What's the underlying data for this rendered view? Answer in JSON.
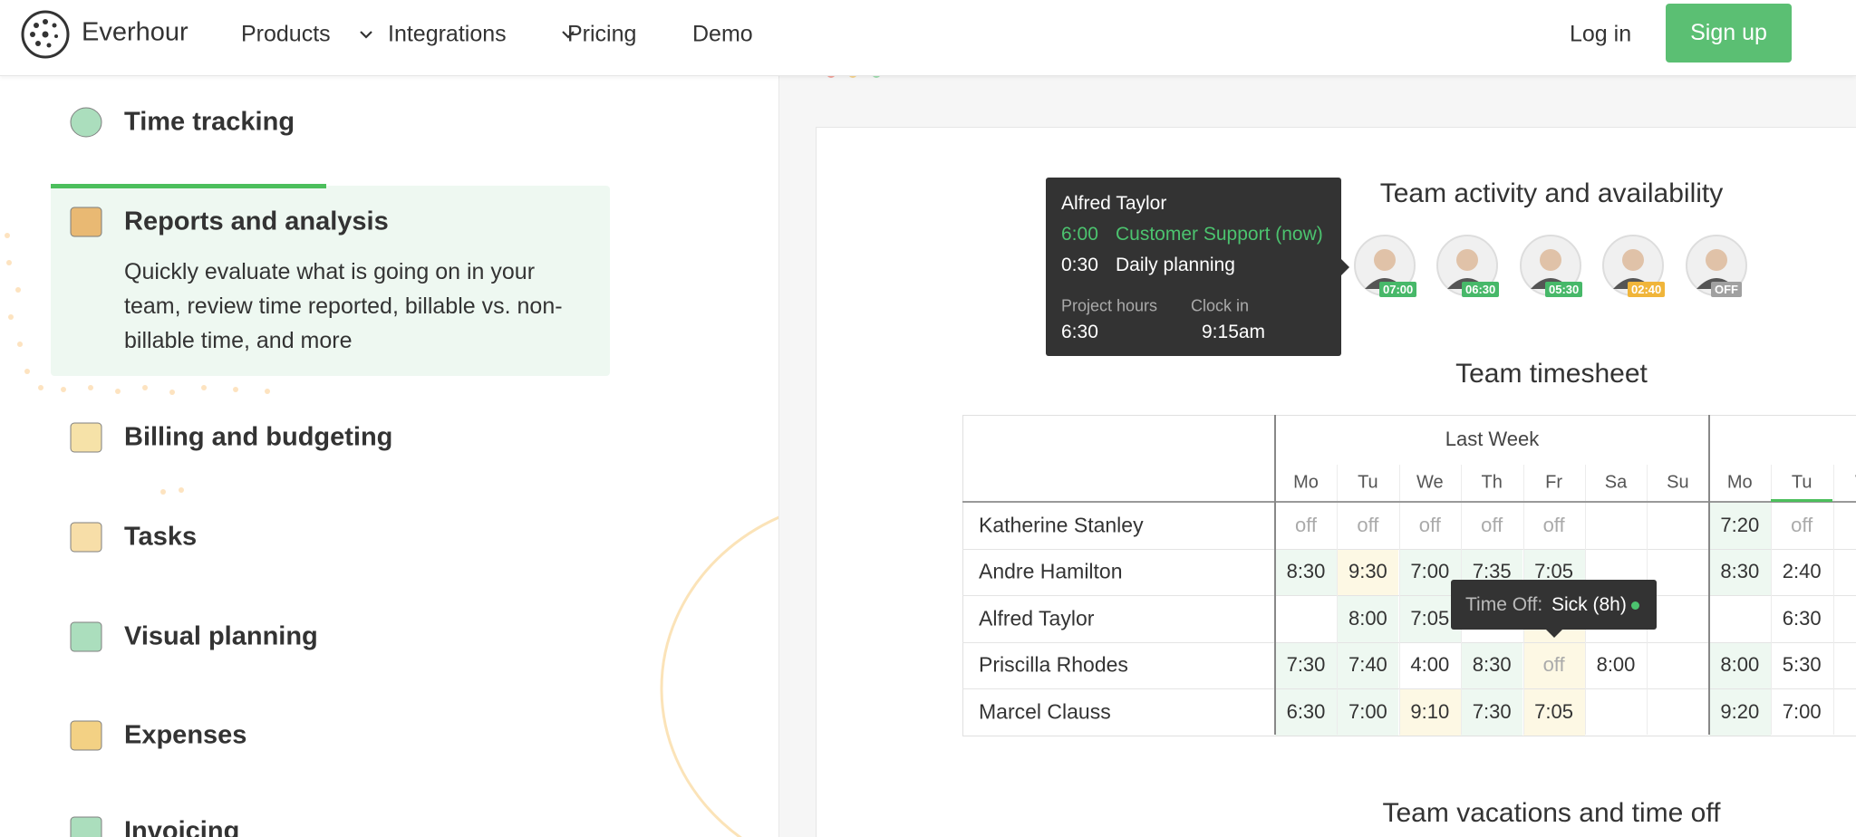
{
  "header": {
    "brand": "Everhour",
    "nav": [
      "Products",
      "Integrations",
      "Pricing",
      "Demo"
    ],
    "login": "Log in",
    "signup": "Sign up"
  },
  "features": [
    {
      "title": "Time tracking",
      "color": "#8fd3a8"
    },
    {
      "title": "Reports and analysis",
      "description": "Quickly evaluate what is going on in your team, review time reported, billable vs. non-billable time, and more",
      "color": "#e8a44a"
    },
    {
      "title": "Billing and budgeting",
      "color": "#f3d98c"
    },
    {
      "title": "Tasks",
      "color": "#f5d48c"
    },
    {
      "title": "Visual planning",
      "color": "#8fd3a8"
    },
    {
      "title": "Expenses",
      "color": "#f0c25c"
    },
    {
      "title": "Invoicing",
      "color": "#8fd3a8"
    }
  ],
  "tooltip": {
    "name": "Alfred Taylor",
    "entries": [
      {
        "time": "6:00",
        "task": "Customer Support (now)",
        "color": "#4cc36f"
      },
      {
        "time": "0:30",
        "task": "Daily planning",
        "color": "#ffffff"
      }
    ],
    "stats": [
      {
        "label": "Project hours",
        "value": "6:30"
      },
      {
        "label": "Clock in",
        "value": "9:15am"
      }
    ]
  },
  "activity": {
    "title": "Team activity and availability",
    "badges": [
      {
        "text": "07:00",
        "color": "#47b869"
      },
      {
        "text": "06:30",
        "color": "#47b869"
      },
      {
        "text": "05:30",
        "color": "#47b869"
      },
      {
        "text": "02:40",
        "color": "#f0b53a"
      },
      {
        "text": "OFF",
        "color": "#a0a0a0"
      }
    ]
  },
  "timesheet": {
    "title": "Team timesheet",
    "week_label": "Last Week",
    "days": [
      "Mo",
      "Tu",
      "We",
      "Th",
      "Fr",
      "Sa",
      "Su",
      "Mo",
      "Tu",
      "W"
    ],
    "tone_colors": {
      "g": "#eef8f1",
      "y": "#fdf8e4"
    },
    "rows": [
      {
        "name": "Katherine Stanley",
        "cells": [
          "off",
          "off",
          "off",
          "off",
          "off",
          null,
          null,
          "7:20",
          "off"
        ],
        "tones": [
          null,
          null,
          null,
          null,
          null,
          null,
          null,
          "g",
          null
        ]
      },
      {
        "name": "Andre Hamilton",
        "cells": [
          "8:30",
          "9:30",
          "7:00",
          "7:35",
          "7:05",
          null,
          null,
          "8:30",
          "2:40"
        ],
        "tones": [
          "g",
          "y",
          "g",
          "g",
          "g",
          null,
          null,
          "g",
          null
        ]
      },
      {
        "name": "Alfred Taylor",
        "cells": [
          null,
          "8:00",
          "7:05",
          null,
          null,
          null,
          null,
          null,
          "6:30"
        ],
        "tones": [
          null,
          "g",
          "g",
          null,
          "y",
          null,
          null,
          null,
          null
        ]
      },
      {
        "name": "Priscilla Rhodes",
        "cells": [
          "7:30",
          "7:40",
          "4:00",
          "8:30",
          "off",
          "8:00",
          null,
          "8:00",
          "5:30"
        ],
        "tones": [
          "g",
          "g",
          null,
          "g",
          "y",
          null,
          null,
          "g",
          null
        ]
      },
      {
        "name": "Marcel Clauss",
        "cells": [
          "6:30",
          "7:00",
          "9:10",
          "7:30",
          "7:05",
          null,
          null,
          "9:20",
          "7:00"
        ],
        "tones": [
          "g",
          "g",
          "y",
          "g",
          "y",
          null,
          null,
          "g",
          null
        ]
      }
    ]
  },
  "time_off_tip": {
    "label": "Time Off:",
    "value": "Sick (8h)"
  },
  "vacations_title": "Team vacations and time off"
}
